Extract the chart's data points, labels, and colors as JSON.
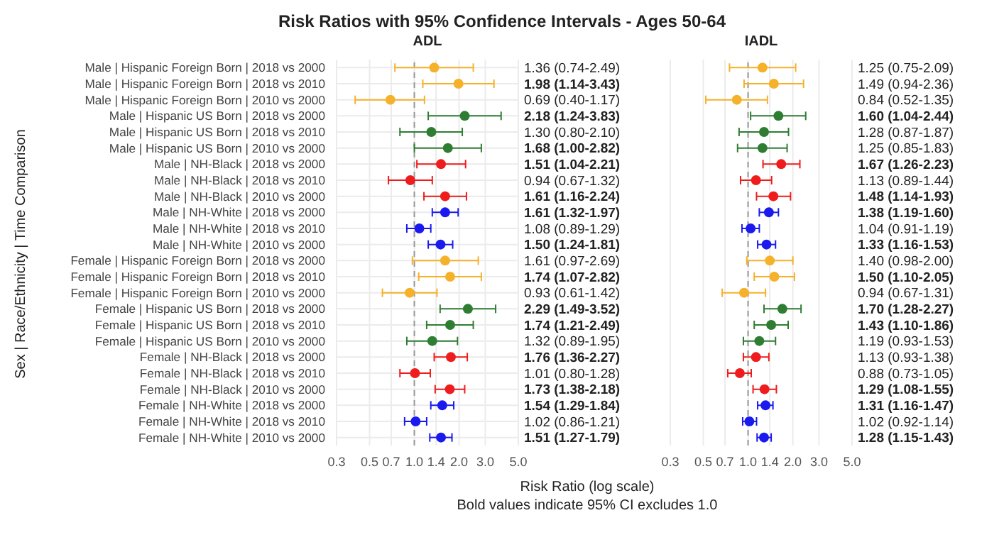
{
  "chart_data": [
    {
      "type": "scatter",
      "title": "Risk Ratios with 95% Confidence Intervals - Ages 50-64",
      "subtitle": "ADL",
      "xlabel": "Risk Ratio (log scale)",
      "ylabel": "Sex | Race/Ethnicity | Time Comparison",
      "annotations": [
        "Bold values indicate 95% CI excludes 1.0"
      ],
      "orientation": "horizontal",
      "log": "x",
      "grid": true,
      "marker": "circle",
      "xlim": [
        0.3,
        5
      ],
      "xticks": [
        0.3,
        0.5,
        0.7,
        {
          "value": 1,
          "label": "1.0"
        },
        1.4,
        {
          "value": 2,
          "label": "2.0"
        },
        {
          "value": 3,
          "label": "3.0"
        },
        {
          "value": 5,
          "label": "5.0"
        }
      ],
      "categories": [
        "Male | Hispanic Foreign Born | 2018 vs 2000",
        "Male | Hispanic Foreign Born | 2018 vs 2010",
        "Male | Hispanic Foreign Born | 2010 vs 2000",
        "Male | Hispanic US Born | 2018 vs 2000",
        "Male | Hispanic US Born | 2018 vs 2010",
        "Male | Hispanic US Born | 2010 vs 2000",
        "Male | NH-Black | 2018 vs 2000",
        "Male | NH-Black | 2018 vs 2010",
        "Male | NH-Black | 2010 vs 2000",
        "Male | NH-White | 2018 vs 2000",
        "Male | NH-White | 2018 vs 2010",
        "Male | NH-White | 2010 vs 2000",
        "Female | Hispanic Foreign Born | 2018 vs 2000",
        "Female | Hispanic Foreign Born | 2018 vs 2010",
        "Female | Hispanic Foreign Born | 2010 vs 2000",
        "Female | Hispanic US Born | 2018 vs 2000",
        "Female | Hispanic US Born | 2018 vs 2010",
        "Female | Hispanic US Born | 2010 vs 2000",
        "Female | NH-Black | 2018 vs 2000",
        "Female | NH-Black | 2018 vs 2010",
        "Female | NH-Black | 2010 vs 2000",
        "Female | NH-White | 2018 vs 2000",
        "Female | NH-White | 2018 vs 2010",
        "Female | NH-White | 2010 vs 2000"
      ],
      "ref_lines": [
        {
          "axis": "x",
          "value": 1,
          "color": "#999999",
          "line_style": "dashed"
        }
      ],
      "series": [
        {
          "colors": [
            "#f5b12a",
            "#f5b12a",
            "#f5b12a",
            "#2e7d32",
            "#2e7d32",
            "#2e7d32",
            "#ee1c1c",
            "#ee1c1c",
            "#ee1c1c",
            "#1a1aee",
            "#1a1aee",
            "#1a1aee",
            "#f5b12a",
            "#f5b12a",
            "#f5b12a",
            "#2e7d32",
            "#2e7d32",
            "#2e7d32",
            "#ee1c1c",
            "#ee1c1c",
            "#ee1c1c",
            "#1a1aee",
            "#1a1aee",
            "#1a1aee"
          ],
          "values": [
            1.36,
            1.98,
            0.69,
            2.18,
            1.3,
            1.68,
            1.51,
            0.94,
            1.61,
            1.61,
            1.08,
            1.5,
            1.61,
            1.74,
            0.93,
            2.29,
            1.74,
            1.32,
            1.76,
            1.01,
            1.73,
            1.54,
            1.02,
            1.51
          ],
          "errors": [
            [
              0.74,
              2.49
            ],
            [
              1.14,
              3.43
            ],
            [
              0.4,
              1.17
            ],
            [
              1.24,
              3.83
            ],
            [
              0.8,
              2.1
            ],
            [
              1.0,
              2.82
            ],
            [
              1.04,
              2.21
            ],
            [
              0.67,
              1.32
            ],
            [
              1.16,
              2.24
            ],
            [
              1.32,
              1.97
            ],
            [
              0.89,
              1.29
            ],
            [
              1.24,
              1.81
            ],
            [
              0.97,
              2.69
            ],
            [
              1.07,
              2.82
            ],
            [
              0.61,
              1.42
            ],
            [
              1.49,
              3.52
            ],
            [
              1.21,
              2.49
            ],
            [
              0.89,
              1.95
            ],
            [
              1.36,
              2.27
            ],
            [
              0.8,
              1.28
            ],
            [
              1.38,
              2.18
            ],
            [
              1.29,
              1.84
            ],
            [
              0.86,
              1.21
            ],
            [
              1.27,
              1.79
            ]
          ],
          "value_labels": [
            "1.36 (0.74-2.49)",
            "1.98 (1.14-3.43)",
            "0.69 (0.40-1.17)",
            "2.18 (1.24-3.83)",
            "1.30 (0.80-2.10)",
            "1.68 (1.00-2.82)",
            "1.51 (1.04-2.21)",
            "0.94 (0.67-1.32)",
            "1.61 (1.16-2.24)",
            "1.61 (1.32-1.97)",
            "1.08 (0.89-1.29)",
            "1.50 (1.24-1.81)",
            "1.61 (0.97-2.69)",
            "1.74 (1.07-2.82)",
            "0.93 (0.61-1.42)",
            "2.29 (1.49-3.52)",
            "1.74 (1.21-2.49)",
            "1.32 (0.89-1.95)",
            "1.76 (1.36-2.27)",
            "1.01 (0.80-1.28)",
            "1.73 (1.38-2.18)",
            "1.54 (1.29-1.84)",
            "1.02 (0.86-1.21)",
            "1.51 (1.27-1.79)"
          ]
        }
      ]
    },
    {
      "type": "scatter",
      "subtitle": "IADL",
      "orientation": "horizontal",
      "log": "x",
      "grid": true,
      "marker": "circle",
      "tick_labels": "x",
      "xlim": [
        0.3,
        5
      ],
      "xticks": [
        0.3,
        0.5,
        0.7,
        {
          "value": 1,
          "label": "1.0"
        },
        1.4,
        {
          "value": 2,
          "label": "2.0"
        },
        {
          "value": 3,
          "label": "3.0"
        },
        {
          "value": 5,
          "label": "5.0"
        }
      ],
      "ref_lines": [
        {
          "axis": "x",
          "value": 1,
          "color": "#999999",
          "line_style": "dashed"
        }
      ],
      "series": [
        {
          "colors": [
            "#f5b12a",
            "#f5b12a",
            "#f5b12a",
            "#2e7d32",
            "#2e7d32",
            "#2e7d32",
            "#ee1c1c",
            "#ee1c1c",
            "#ee1c1c",
            "#1a1aee",
            "#1a1aee",
            "#1a1aee",
            "#f5b12a",
            "#f5b12a",
            "#f5b12a",
            "#2e7d32",
            "#2e7d32",
            "#2e7d32",
            "#ee1c1c",
            "#ee1c1c",
            "#ee1c1c",
            "#1a1aee",
            "#1a1aee",
            "#1a1aee"
          ],
          "values": [
            1.25,
            1.49,
            0.84,
            1.6,
            1.28,
            1.25,
            1.67,
            1.13,
            1.48,
            1.38,
            1.04,
            1.33,
            1.4,
            1.5,
            0.94,
            1.7,
            1.43,
            1.19,
            1.13,
            0.88,
            1.29,
            1.31,
            1.02,
            1.28
          ],
          "errors": [
            [
              0.75,
              2.09
            ],
            [
              0.94,
              2.36
            ],
            [
              0.52,
              1.35
            ],
            [
              1.04,
              2.44
            ],
            [
              0.87,
              1.87
            ],
            [
              0.85,
              1.83
            ],
            [
              1.26,
              2.23
            ],
            [
              0.89,
              1.44
            ],
            [
              1.14,
              1.93
            ],
            [
              1.19,
              1.6
            ],
            [
              0.91,
              1.19
            ],
            [
              1.16,
              1.53
            ],
            [
              0.98,
              2.0
            ],
            [
              1.1,
              2.05
            ],
            [
              0.67,
              1.31
            ],
            [
              1.28,
              2.27
            ],
            [
              1.1,
              1.86
            ],
            [
              0.93,
              1.53
            ],
            [
              0.93,
              1.38
            ],
            [
              0.73,
              1.05
            ],
            [
              1.08,
              1.55
            ],
            [
              1.16,
              1.47
            ],
            [
              0.92,
              1.14
            ],
            [
              1.15,
              1.43
            ]
          ],
          "value_labels": [
            "1.25 (0.75-2.09)",
            "1.49 (0.94-2.36)",
            "0.84 (0.52-1.35)",
            "1.60 (1.04-2.44)",
            "1.28 (0.87-1.87)",
            "1.25 (0.85-1.83)",
            "1.67 (1.26-2.23)",
            "1.13 (0.89-1.44)",
            "1.48 (1.14-1.93)",
            "1.38 (1.19-1.60)",
            "1.04 (0.91-1.19)",
            "1.33 (1.16-1.53)",
            "1.40 (0.98-2.00)",
            "1.50 (1.10-2.05)",
            "0.94 (0.67-1.31)",
            "1.70 (1.28-2.27)",
            "1.43 (1.10-1.86)",
            "1.19 (0.93-1.53)",
            "1.13 (0.93-1.38)",
            "0.88 (0.73-1.05)",
            "1.29 (1.08-1.55)",
            "1.31 (1.16-1.47)",
            "1.02 (0.92-1.14)",
            "1.28 (1.15-1.43)"
          ]
        }
      ]
    }
  ]
}
